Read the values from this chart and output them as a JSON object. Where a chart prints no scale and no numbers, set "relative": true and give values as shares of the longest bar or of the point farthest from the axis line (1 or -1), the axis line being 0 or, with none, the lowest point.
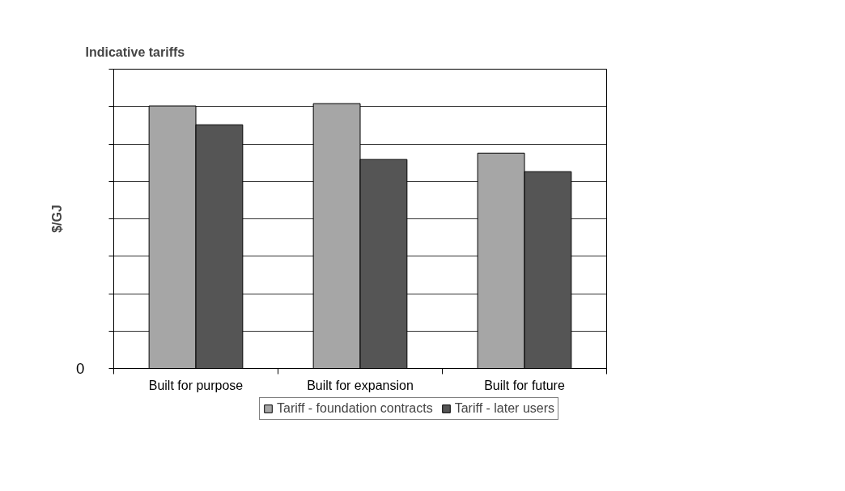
{
  "chart_data": {
    "type": "bar",
    "title": "Indicative tariffs",
    "ylabel": "$/GJ",
    "relative": true,
    "categories": [
      "Built for purpose",
      "Built for expansion",
      "Built for future"
    ],
    "series": [
      {
        "name": "Tariff - foundation contracts",
        "color": "#a6a6a6",
        "values": [
          0.991,
          1.0,
          0.813
        ]
      },
      {
        "name": "Tariff - later users",
        "color": "#555555",
        "values": [
          0.92,
          0.789,
          0.743
        ]
      }
    ],
    "annotations": [
      "0"
    ],
    "grid": "y",
    "legend": "bottom"
  }
}
